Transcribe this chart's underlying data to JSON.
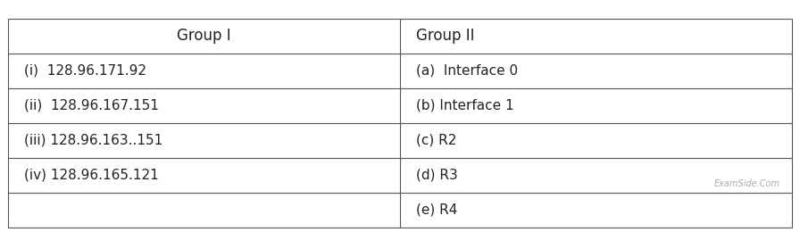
{
  "col1_header": "Group I",
  "col2_header": "Group II",
  "col1_rows": [
    "(i)  128.96.171.92",
    "(ii)  128.96.167.151",
    "(iii) 128.96.163..151",
    "(iv) 128.96.165.121",
    ""
  ],
  "col2_rows": [
    "(a)  Interface 0",
    "(b) Interface 1",
    "(c) R2",
    "(d) R3",
    "(e) R4"
  ],
  "watermark": "ExamSide.Com",
  "border_color": "#555555",
  "bg_color": "#ffffff",
  "text_color": "#222222",
  "watermark_color": "#aaaaaa",
  "font_size": 11,
  "header_font_size": 12
}
